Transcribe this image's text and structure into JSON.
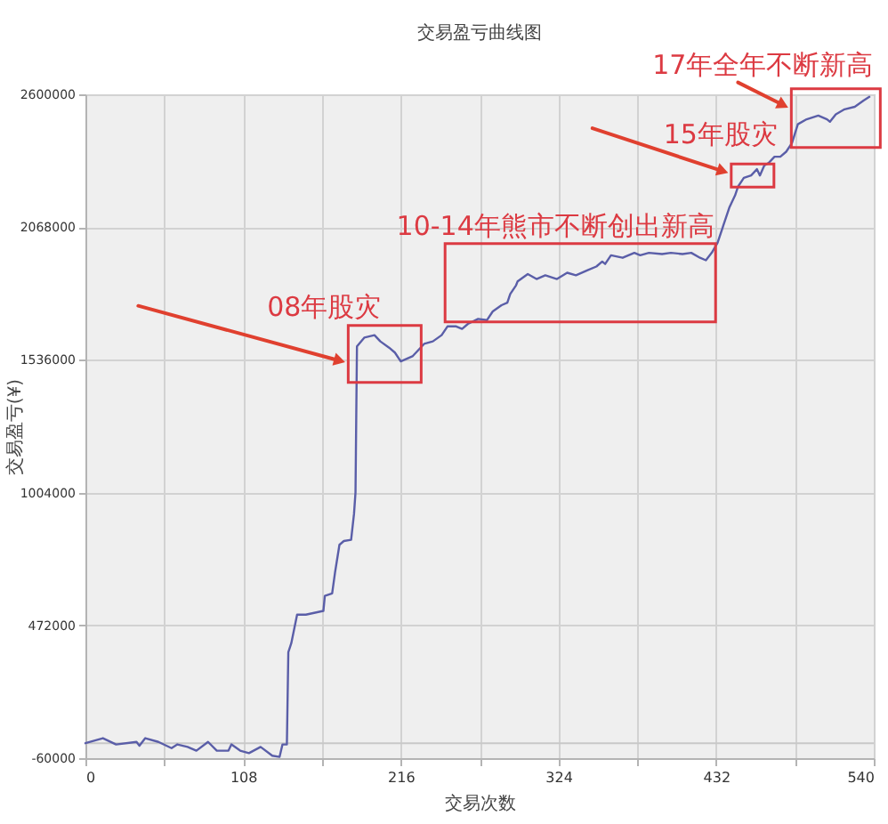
{
  "chart_data": {
    "type": "line",
    "title": "交易盈亏曲线图",
    "xlabel": "交易次数",
    "ylabel": "交易盈亏(¥)",
    "xlim": [
      0,
      540
    ],
    "ylim": [
      -60000,
      2600000
    ],
    "xticks": [
      0,
      {
        "value": 54,
        "label": null
      },
      108,
      {
        "value": 162,
        "label": null
      },
      216,
      {
        "value": 270,
        "label": null
      },
      324,
      {
        "value": 378,
        "label": null
      },
      432,
      {
        "value": 486,
        "label": null
      },
      540
    ],
    "yticks": [
      -60000,
      472000,
      1004000,
      1536000,
      2068000,
      2600000
    ],
    "grid": true,
    "line_style": "solid",
    "x": [
      0,
      12,
      21,
      35,
      37,
      41,
      50,
      59,
      63,
      70,
      76,
      84,
      90,
      98,
      100,
      106,
      112,
      120,
      128,
      133,
      135,
      138,
      139,
      141,
      145,
      151,
      163,
      164,
      169,
      171,
      174,
      177,
      182,
      184,
      185,
      186,
      191,
      198,
      202,
      208,
      212,
      216,
      224,
      232,
      238,
      244,
      248,
      254,
      258,
      262,
      269,
      275,
      279,
      285,
      289,
      291,
      295,
      296,
      303,
      309,
      315,
      323,
      330,
      336,
      344,
      350,
      354,
      356,
      360,
      368,
      376,
      380,
      386,
      395,
      401,
      409,
      415,
      421,
      425,
      429,
      433,
      437,
      441,
      445,
      447,
      451,
      456,
      460,
      462,
      465,
      468,
      472,
      476,
      480,
      484,
      488,
      494,
      502,
      508,
      510,
      514,
      520,
      527,
      533,
      537
    ],
    "series": [
      {
        "color": "#5a5ea8",
        "values": [
          0,
          20000,
          -5000,
          5000,
          -10000,
          20000,
          5000,
          -20000,
          -5000,
          -15000,
          -30000,
          5000,
          -30000,
          -30000,
          -5000,
          -30000,
          -40000,
          -15000,
          -50000,
          -55000,
          -5000,
          -5000,
          365000,
          400000,
          515000,
          515000,
          530000,
          590000,
          600000,
          685000,
          795000,
          810000,
          815000,
          920000,
          1005000,
          1590000,
          1625000,
          1635000,
          1610000,
          1585000,
          1565000,
          1530000,
          1550000,
          1600000,
          1610000,
          1635000,
          1670000,
          1670000,
          1660000,
          1680000,
          1700000,
          1695000,
          1730000,
          1755000,
          1765000,
          1800000,
          1835000,
          1850000,
          1880000,
          1860000,
          1875000,
          1860000,
          1885000,
          1875000,
          1895000,
          1910000,
          1930000,
          1920000,
          1955000,
          1945000,
          1965000,
          1955000,
          1965000,
          1960000,
          1965000,
          1960000,
          1965000,
          1945000,
          1935000,
          1965000,
          2005000,
          2075000,
          2145000,
          2195000,
          2230000,
          2265000,
          2275000,
          2300000,
          2275000,
          2315000,
          2325000,
          2350000,
          2350000,
          2370000,
          2405000,
          2480000,
          2500000,
          2515000,
          2500000,
          2490000,
          2520000,
          2540000,
          2550000,
          2575000,
          2590000
        ]
      }
    ],
    "ref_lines": [
      {
        "axis": "y",
        "value": 0,
        "color": "#c8c8c8"
      }
    ],
    "annotations": [
      {
        "text": "17年全年不断新高",
        "x": 514,
        "y": 2505000
      },
      {
        "text": "15年股灾",
        "x": 457,
        "y": 2275000
      },
      {
        "text": "10-14年熊市不断创出新高",
        "x": 339,
        "y": 1845000
      },
      {
        "text": "08年股灾",
        "x": 205,
        "y": 1560000
      }
    ]
  }
}
